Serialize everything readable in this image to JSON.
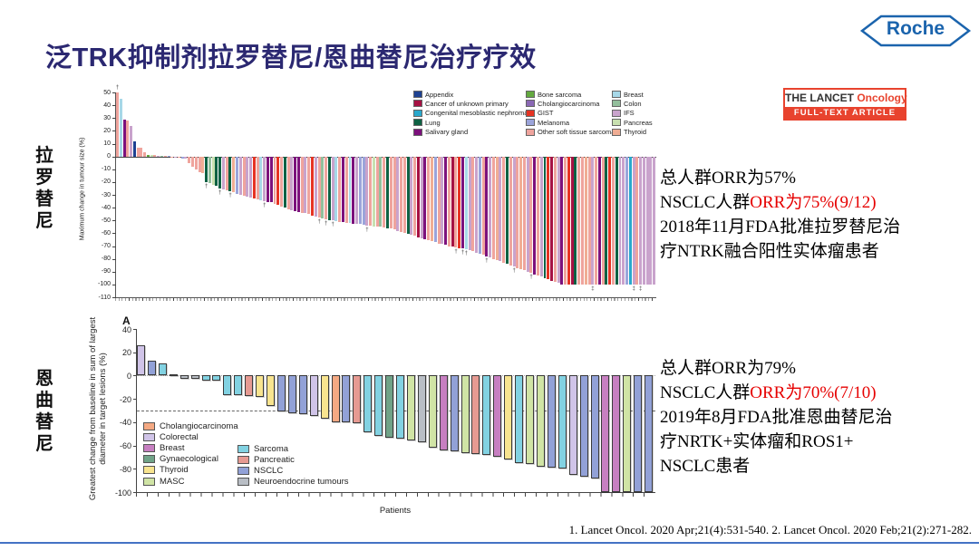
{
  "slide": {
    "title": "泛TRK抑制剂拉罗替尼/恩曲替尼治疗疗效",
    "logo": "Roche",
    "lancet_badge": {
      "name_black": "THE LANCET",
      "name_red": "Oncology",
      "banner": "FULL-TEXT ARTICLE"
    },
    "left_labels": {
      "top": "拉罗替尼",
      "bottom": "恩曲替尼"
    },
    "citation": "1. Lancet Oncol. 2020 Apr;21(4):531-540. 2. Lancet Oncol. 2020 Feb;21(2):271-282."
  },
  "annotations": {
    "larotrectinib": {
      "line1": "总人群ORR为57%",
      "line2_black": "NSCLC人群",
      "line2_red": "ORR为75%(9/12)",
      "line3": "2018年11月FDA批准拉罗替尼治",
      "line4": "疗NTRK融合阳性实体瘤患者"
    },
    "entrectinib": {
      "line1": "总人群ORR为79%",
      "line2_black": "NSCLC人群",
      "line2_red": "ORR为70%(7/10)",
      "line3": "2019年8月FDA批准恩曲替尼治",
      "line4": "疗NRTK+实体瘤和ROS1+",
      "line5": "NSCLC患者"
    }
  },
  "chart_data": [
    {
      "type": "bar",
      "id": "larotrectinib-waterfall",
      "ylabel": "Maximum change in tumour size (%)",
      "ylim": [
        -110,
        50
      ],
      "ytick_step": 10,
      "grid": false,
      "legend_position": "top-right-inside",
      "marker_meanings": {
        "1": "†",
        "2": "‡"
      },
      "legend": [
        {
          "label": "Appendix",
          "color": "#1e4191"
        },
        {
          "label": "Cancer of unknown primary",
          "color": "#a61143"
        },
        {
          "label": "Congenital mesoblastic nephroma",
          "color": "#29a8cc"
        },
        {
          "label": "Lung",
          "color": "#0e6143"
        },
        {
          "label": "Salivary gland",
          "color": "#7c117c"
        },
        {
          "label": "Bone sarcoma",
          "color": "#63a93f"
        },
        {
          "label": "Cholangiocarcinoma",
          "color": "#8a68b5"
        },
        {
          "label": "GIST",
          "color": "#e63323"
        },
        {
          "label": "Melanoma",
          "color": "#9ba4da"
        },
        {
          "label": "Other soft tissue sarcoma",
          "color": "#efa49d"
        },
        {
          "label": "Breast",
          "color": "#a7d8e8"
        },
        {
          "label": "Colon",
          "color": "#93bf9c"
        },
        {
          "label": "IFS",
          "color": "#c9a3cc"
        },
        {
          "label": "Pancreas",
          "color": "#c8e0b0"
        },
        {
          "label": "Thyroid",
          "color": "#f0ad94"
        }
      ],
      "bars": [
        [
          50,
          9,
          1
        ],
        [
          45,
          10
        ],
        [
          29,
          4
        ],
        [
          28,
          9
        ],
        [
          24,
          12
        ],
        [
          12,
          0
        ],
        [
          7,
          9
        ],
        [
          6.5,
          9
        ],
        [
          3,
          9
        ],
        [
          1.5,
          5
        ],
        [
          1,
          13
        ],
        [
          0.8,
          9
        ],
        [
          0.6,
          12
        ],
        [
          0.5,
          11
        ],
        [
          0.4,
          9
        ],
        [
          0.3,
          8
        ],
        [
          -0.3,
          9
        ],
        [
          -0.5,
          12
        ],
        [
          -1,
          9
        ],
        [
          -1.5,
          8
        ],
        [
          -2,
          12
        ],
        [
          -5,
          9
        ],
        [
          -8,
          9
        ],
        [
          -10,
          9
        ],
        [
          -12,
          9
        ],
        [
          -13,
          14
        ],
        [
          -20,
          3,
          1
        ],
        [
          -21,
          11
        ],
        [
          -22.5,
          13
        ],
        [
          -23,
          3
        ],
        [
          -25,
          3,
          1
        ],
        [
          -26,
          12
        ],
        [
          -26.5,
          9
        ],
        [
          -27,
          3,
          1
        ],
        [
          -28,
          14
        ],
        [
          -29,
          8
        ],
        [
          -30,
          12
        ],
        [
          -31,
          9
        ],
        [
          -31.5,
          12
        ],
        [
          -32,
          12
        ],
        [
          -33,
          7
        ],
        [
          -33.5,
          9
        ],
        [
          -34,
          10
        ],
        [
          -35,
          12,
          1
        ],
        [
          -35.5,
          4
        ],
        [
          -36,
          4
        ],
        [
          -37,
          9
        ],
        [
          -38,
          7
        ],
        [
          -39,
          9
        ],
        [
          -40,
          3
        ],
        [
          -41,
          9
        ],
        [
          -42,
          12
        ],
        [
          -43,
          4
        ],
        [
          -43.5,
          4
        ],
        [
          -44,
          9
        ],
        [
          -44,
          12
        ],
        [
          -45,
          9
        ],
        [
          -46,
          7
        ],
        [
          -47,
          12
        ],
        [
          -48,
          9,
          1
        ],
        [
          -48.5,
          11
        ],
        [
          -49,
          9,
          1
        ],
        [
          -50,
          3
        ],
        [
          -50,
          12,
          1
        ],
        [
          -50.5,
          10
        ],
        [
          -51,
          9
        ],
        [
          -51.5,
          4
        ],
        [
          -52,
          9
        ],
        [
          -52,
          10
        ],
        [
          -52.5,
          4
        ],
        [
          -53,
          12
        ],
        [
          -53,
          8
        ],
        [
          -53.5,
          8
        ],
        [
          -54,
          12,
          1
        ],
        [
          -54,
          9
        ],
        [
          -54.5,
          13
        ],
        [
          -55,
          9
        ],
        [
          -55,
          11
        ],
        [
          -55.5,
          9
        ],
        [
          -56,
          3
        ],
        [
          -56.5,
          9
        ],
        [
          -57,
          9
        ],
        [
          -58,
          12
        ],
        [
          -59,
          9
        ],
        [
          -60,
          9
        ],
        [
          -60.5,
          3
        ],
        [
          -61,
          12
        ],
        [
          -62,
          9
        ],
        [
          -63,
          1
        ],
        [
          -64,
          12
        ],
        [
          -65,
          4
        ],
        [
          -65.5,
          9
        ],
        [
          -66,
          14
        ],
        [
          -67,
          8
        ],
        [
          -68,
          9
        ],
        [
          -68.5,
          12
        ],
        [
          -69,
          4
        ],
        [
          -70,
          9
        ],
        [
          -70.5,
          1
        ],
        [
          -71,
          9,
          1
        ],
        [
          -71.5,
          7
        ],
        [
          -72,
          4,
          1
        ],
        [
          -72.5,
          10,
          1
        ],
        [
          -73,
          12
        ],
        [
          -74,
          9
        ],
        [
          -75,
          12
        ],
        [
          -76,
          8
        ],
        [
          -77,
          9
        ],
        [
          -78,
          4,
          1
        ],
        [
          -79,
          12
        ],
        [
          -80,
          9
        ],
        [
          -81,
          14
        ],
        [
          -82,
          12
        ],
        [
          -83,
          9
        ],
        [
          -84,
          3
        ],
        [
          -85,
          9
        ],
        [
          -86,
          12,
          1
        ],
        [
          -87,
          9
        ],
        [
          -88,
          14
        ],
        [
          -89,
          9
        ],
        [
          -90,
          12
        ],
        [
          -91,
          9,
          1
        ],
        [
          -92,
          4
        ],
        [
          -93,
          9
        ],
        [
          -94,
          12
        ],
        [
          -95,
          3
        ],
        [
          -96,
          7
        ],
        [
          -97,
          1
        ],
        [
          -98,
          9
        ],
        [
          -99,
          12
        ],
        [
          -100,
          4
        ],
        [
          -100,
          9
        ],
        [
          -100,
          7
        ],
        [
          -100,
          1
        ],
        [
          -100,
          3
        ],
        [
          -100,
          9
        ],
        [
          -100,
          9
        ],
        [
          -100,
          14
        ],
        [
          -100,
          9
        ],
        [
          -100,
          12,
          2
        ],
        [
          -100,
          9
        ],
        [
          -100,
          4
        ],
        [
          -100,
          9
        ],
        [
          -100,
          3
        ],
        [
          -100,
          7
        ],
        [
          -100,
          9
        ],
        [
          -100,
          3
        ],
        [
          -100,
          12
        ],
        [
          -100,
          12
        ],
        [
          -100,
          8
        ],
        [
          -100,
          2
        ],
        [
          -100,
          12,
          2
        ],
        [
          -100,
          9
        ],
        [
          -100,
          12,
          2
        ],
        [
          -100,
          12
        ],
        [
          -100,
          12
        ],
        [
          -100,
          12
        ],
        [
          -100,
          12
        ]
      ]
    },
    {
      "type": "bar",
      "id": "entrectinib-waterfall",
      "panel_label": "A",
      "ylabel_line1": "Greatest change from baseline in sum of largest",
      "ylabel_line2": "diameter in target lesions (%)",
      "xlabel": "Patients",
      "ylim": [
        -100,
        40
      ],
      "ytick_step": 20,
      "grid": false,
      "reference_lines": [
        0,
        -30
      ],
      "legend": [
        {
          "label": "Cholangiocarcinoma",
          "color": "#f4a983"
        },
        {
          "label": "Colorectal",
          "color": "#d0c4e8"
        },
        {
          "label": "Breast",
          "color": "#c77fc1"
        },
        {
          "label": "Gynaecological",
          "color": "#70a388"
        },
        {
          "label": "Thyroid",
          "color": "#f8e48f"
        },
        {
          "label": "MASC",
          "color": "#d0e4a5"
        },
        {
          "label": "Sarcoma",
          "color": "#82d2e2"
        },
        {
          "label": "Pancreatic",
          "color": "#e69a92"
        },
        {
          "label": "NSCLC",
          "color": "#92a1d7"
        },
        {
          "label": "Neuroendocrine tumours",
          "color": "#b9bec5"
        }
      ],
      "legend_col1_count": 6,
      "bars": [
        [
          26,
          1
        ],
        [
          13,
          8
        ],
        [
          10.5,
          6
        ],
        [
          1.5,
          6
        ],
        [
          -2.5,
          9
        ],
        [
          -3,
          9
        ],
        [
          -4,
          6
        ],
        [
          -4.5,
          6
        ],
        [
          -16.5,
          6
        ],
        [
          -17,
          6
        ],
        [
          -17.5,
          7
        ],
        [
          -18.5,
          4
        ],
        [
          -26,
          4
        ],
        [
          -31,
          8
        ],
        [
          -32.5,
          8
        ],
        [
          -33.5,
          8
        ],
        [
          -35,
          1
        ],
        [
          -37,
          4
        ],
        [
          -40,
          0
        ],
        [
          -40.5,
          8
        ],
        [
          -41,
          7
        ],
        [
          -49,
          6
        ],
        [
          -52,
          6
        ],
        [
          -53,
          3
        ],
        [
          -54,
          6
        ],
        [
          -56,
          5
        ],
        [
          -57.5,
          9
        ],
        [
          -62,
          5
        ],
        [
          -64,
          2
        ],
        [
          -65,
          8
        ],
        [
          -66.5,
          5
        ],
        [
          -67,
          7
        ],
        [
          -68,
          6
        ],
        [
          -70,
          2
        ],
        [
          -72,
          4
        ],
        [
          -75,
          6
        ],
        [
          -76,
          5
        ],
        [
          -78,
          5
        ],
        [
          -79,
          8
        ],
        [
          -80,
          6
        ],
        [
          -85,
          1
        ],
        [
          -87,
          8
        ],
        [
          -88,
          8
        ],
        [
          -100,
          2
        ],
        [
          -100,
          2
        ],
        [
          -100,
          5
        ],
        [
          -100,
          8
        ],
        [
          -100,
          8
        ]
      ]
    }
  ]
}
